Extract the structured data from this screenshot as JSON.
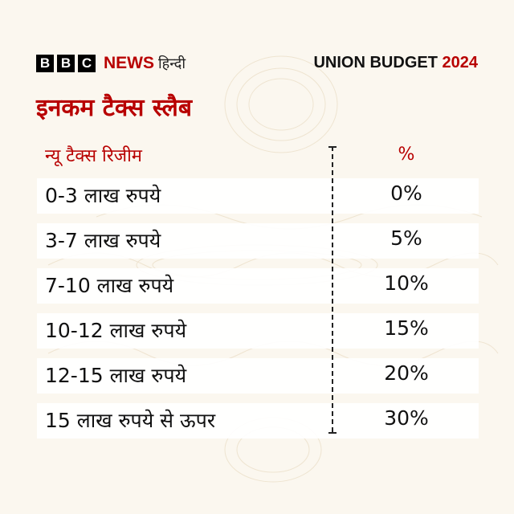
{
  "header": {
    "logo_letters": [
      "B",
      "B",
      "C"
    ],
    "logo_news": "NEWS",
    "logo_language": "हिन्दी",
    "budget_label": "UNION BUDGET",
    "budget_year": "2024"
  },
  "title": "इनकम टैक्स स्लैब",
  "table": {
    "column_left": "न्यू टैक्स रिजीम",
    "column_right": "%",
    "rows": [
      {
        "label": "0-3 लाख रुपये",
        "value": "0%"
      },
      {
        "label": "3-7 लाख रुपये",
        "value": "5%"
      },
      {
        "label": "7-10 लाख रुपये",
        "value": "10%"
      },
      {
        "label": "10-12 लाख रुपये",
        "value": "15%"
      },
      {
        "label": "12-15 लाख रुपये",
        "value": "20%"
      },
      {
        "label": "15 लाख रुपये से ऊपर",
        "value": "30%"
      }
    ]
  },
  "colors": {
    "accent": "#b80000",
    "background": "#fbf7ef",
    "text": "#111111"
  }
}
